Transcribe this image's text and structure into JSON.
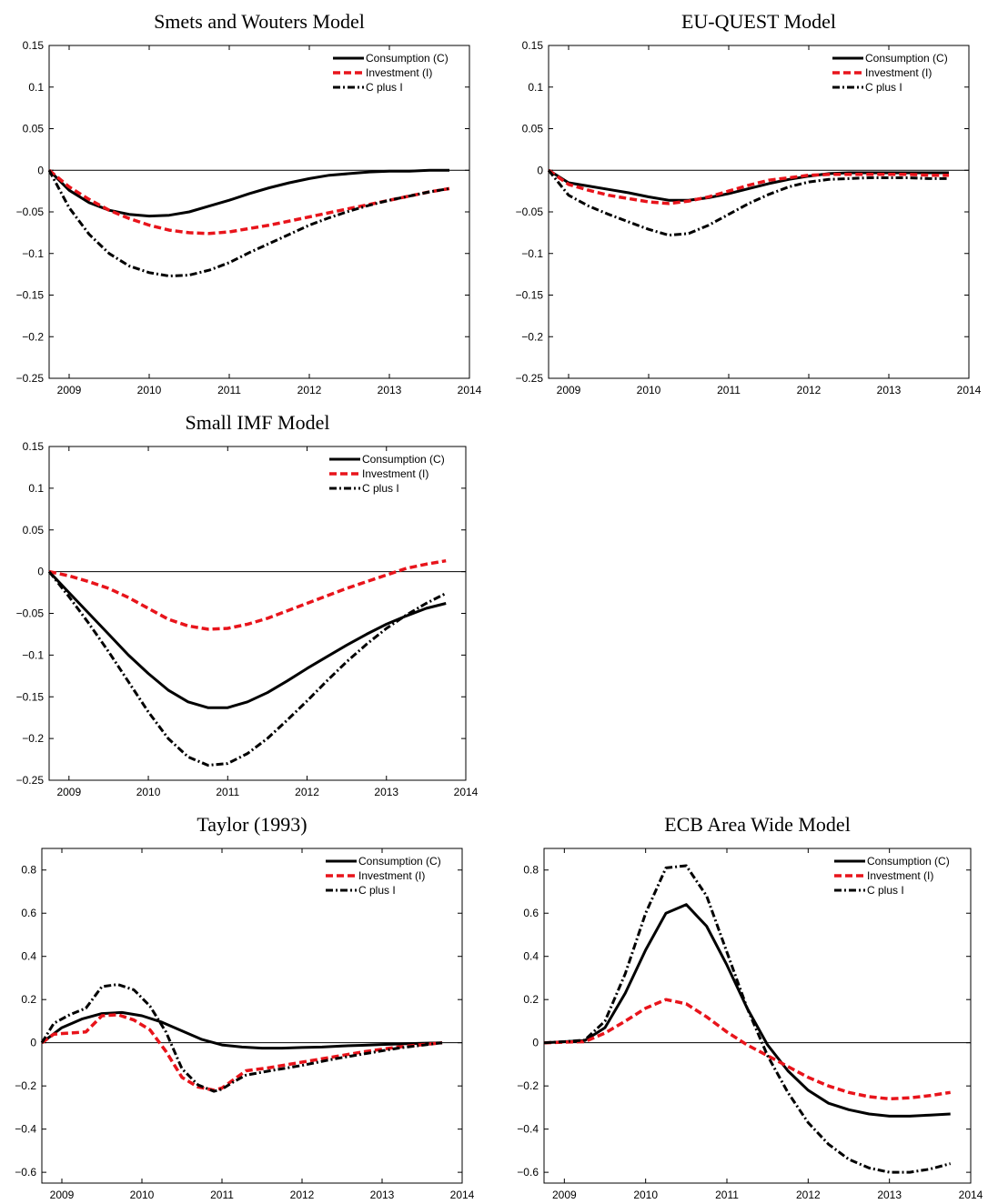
{
  "chart_data": [
    {
      "type": "line",
      "title": "Smets and Wouters Model",
      "xlim": [
        2008.75,
        2014.0
      ],
      "ylim": [
        -0.25,
        0.15
      ],
      "xticks": [
        2009,
        2010,
        2011,
        2012,
        2013,
        2014
      ],
      "yticks": [
        -0.25,
        -0.2,
        -0.15,
        -0.1,
        -0.05,
        0,
        0.05,
        0.1,
        0.15
      ],
      "ytick_labels": [
        "−0.25",
        "−0.2",
        "−0.15",
        "−0.1",
        "−0.05",
        "0",
        "0.05",
        "0.1",
        "0.15"
      ],
      "legend_position": "top-right",
      "series": [
        {
          "name": "Consumption (C)",
          "color": "#000000",
          "style": "solid",
          "x": [
            2008.75,
            2009.0,
            2009.25,
            2009.5,
            2009.75,
            2010.0,
            2010.25,
            2010.5,
            2010.75,
            2011.0,
            2011.25,
            2011.5,
            2011.75,
            2012.0,
            2012.25,
            2012.5,
            2012.75,
            2013.0,
            2013.25,
            2013.5,
            2013.75
          ],
          "y": [
            0,
            -0.024,
            -0.039,
            -0.048,
            -0.053,
            -0.055,
            -0.054,
            -0.05,
            -0.043,
            -0.036,
            -0.028,
            -0.021,
            -0.015,
            -0.01,
            -0.006,
            -0.004,
            -0.002,
            -0.001,
            -0.001,
            0,
            0
          ]
        },
        {
          "name": "Investment (I)",
          "color": "#e8141b",
          "style": "dashed",
          "x": [
            2008.75,
            2009.0,
            2009.25,
            2009.5,
            2009.75,
            2010.0,
            2010.25,
            2010.5,
            2010.75,
            2011.0,
            2011.25,
            2011.5,
            2011.75,
            2012.0,
            2012.25,
            2012.5,
            2012.75,
            2013.0,
            2013.25,
            2013.5,
            2013.75
          ],
          "y": [
            0,
            -0.02,
            -0.035,
            -0.048,
            -0.058,
            -0.066,
            -0.072,
            -0.075,
            -0.076,
            -0.074,
            -0.07,
            -0.066,
            -0.061,
            -0.056,
            -0.051,
            -0.046,
            -0.041,
            -0.036,
            -0.031,
            -0.026,
            -0.022
          ]
        },
        {
          "name": "C plus I",
          "color": "#000000",
          "style": "dashdot",
          "x": [
            2008.75,
            2009.0,
            2009.25,
            2009.5,
            2009.75,
            2010.0,
            2010.25,
            2010.5,
            2010.75,
            2011.0,
            2011.25,
            2011.5,
            2011.75,
            2012.0,
            2012.25,
            2012.5,
            2012.75,
            2013.0,
            2013.25,
            2013.5,
            2013.75
          ],
          "y": [
            0,
            -0.045,
            -0.077,
            -0.1,
            -0.115,
            -0.123,
            -0.127,
            -0.126,
            -0.12,
            -0.111,
            -0.099,
            -0.088,
            -0.077,
            -0.066,
            -0.057,
            -0.049,
            -0.042,
            -0.036,
            -0.031,
            -0.026,
            -0.022
          ]
        }
      ]
    },
    {
      "type": "line",
      "title": "EU-QUEST Model",
      "xlim": [
        2008.75,
        2014.0
      ],
      "ylim": [
        -0.25,
        0.15
      ],
      "xticks": [
        2009,
        2010,
        2011,
        2012,
        2013,
        2014
      ],
      "yticks": [
        -0.25,
        -0.2,
        -0.15,
        -0.1,
        -0.05,
        0,
        0.05,
        0.1,
        0.15
      ],
      "ytick_labels": [
        "−0.25",
        "−0.2",
        "−0.15",
        "−0.1",
        "−0.05",
        "0",
        "0.05",
        "0.1",
        "0.15"
      ],
      "legend_position": "top-right",
      "series": [
        {
          "name": "Consumption (C)",
          "color": "#000000",
          "style": "solid",
          "x": [
            2008.75,
            2009.0,
            2009.25,
            2009.5,
            2009.75,
            2010.0,
            2010.25,
            2010.5,
            2010.75,
            2011.0,
            2011.25,
            2011.5,
            2011.75,
            2012.0,
            2012.25,
            2012.5,
            2012.75,
            2013.0,
            2013.25,
            2013.5,
            2013.75
          ],
          "y": [
            0,
            -0.015,
            -0.019,
            -0.023,
            -0.027,
            -0.032,
            -0.036,
            -0.036,
            -0.033,
            -0.028,
            -0.022,
            -0.016,
            -0.011,
            -0.007,
            -0.004,
            -0.003,
            -0.003,
            -0.003,
            -0.003,
            -0.003,
            -0.003
          ]
        },
        {
          "name": "Investment (I)",
          "color": "#e8141b",
          "style": "dashed",
          "x": [
            2008.75,
            2009.0,
            2009.25,
            2009.5,
            2009.75,
            2010.0,
            2010.25,
            2010.5,
            2010.75,
            2011.0,
            2011.25,
            2011.5,
            2011.75,
            2012.0,
            2012.25,
            2012.5,
            2012.75,
            2013.0,
            2013.25,
            2013.5,
            2013.75
          ],
          "y": [
            0,
            -0.017,
            -0.024,
            -0.03,
            -0.034,
            -0.038,
            -0.04,
            -0.037,
            -0.032,
            -0.025,
            -0.018,
            -0.012,
            -0.009,
            -0.006,
            -0.005,
            -0.005,
            -0.005,
            -0.005,
            -0.005,
            -0.006,
            -0.006
          ]
        },
        {
          "name": "C plus I",
          "color": "#000000",
          "style": "dashdot",
          "x": [
            2008.75,
            2009.0,
            2009.25,
            2009.5,
            2009.75,
            2010.0,
            2010.25,
            2010.5,
            2010.75,
            2011.0,
            2011.25,
            2011.5,
            2011.75,
            2012.0,
            2012.25,
            2012.5,
            2012.75,
            2013.0,
            2013.25,
            2013.5,
            2013.75
          ],
          "y": [
            0,
            -0.03,
            -0.043,
            -0.053,
            -0.062,
            -0.071,
            -0.078,
            -0.076,
            -0.066,
            -0.053,
            -0.04,
            -0.029,
            -0.02,
            -0.014,
            -0.011,
            -0.01,
            -0.009,
            -0.009,
            -0.009,
            -0.01,
            -0.01
          ]
        }
      ]
    },
    {
      "type": "line",
      "title": "Small IMF Model",
      "xlim": [
        2008.75,
        2014.0
      ],
      "ylim": [
        -0.25,
        0.15
      ],
      "xticks": [
        2009,
        2010,
        2011,
        2012,
        2013,
        2014
      ],
      "yticks": [
        -0.25,
        -0.2,
        -0.15,
        -0.1,
        -0.05,
        0,
        0.05,
        0.1,
        0.15
      ],
      "ytick_labels": [
        "−0.25",
        "−0.2",
        "−0.15",
        "−0.1",
        "−0.05",
        "0",
        "0.05",
        "0.1",
        "0.15"
      ],
      "legend_position": "top-right",
      "series": [
        {
          "name": "Consumption (C)",
          "color": "#000000",
          "style": "solid",
          "x": [
            2008.75,
            2009.0,
            2009.25,
            2009.5,
            2009.75,
            2010.0,
            2010.25,
            2010.5,
            2010.75,
            2011.0,
            2011.25,
            2011.5,
            2011.75,
            2012.0,
            2012.25,
            2012.5,
            2012.75,
            2013.0,
            2013.25,
            2013.5,
            2013.75
          ],
          "y": [
            0,
            -0.025,
            -0.05,
            -0.075,
            -0.1,
            -0.122,
            -0.142,
            -0.156,
            -0.163,
            -0.163,
            -0.156,
            -0.145,
            -0.131,
            -0.116,
            -0.102,
            -0.088,
            -0.075,
            -0.063,
            -0.053,
            -0.044,
            -0.038
          ]
        },
        {
          "name": "Investment (I)",
          "color": "#e8141b",
          "style": "dashed",
          "x": [
            2008.75,
            2009.0,
            2009.25,
            2009.5,
            2009.75,
            2010.0,
            2010.25,
            2010.5,
            2010.75,
            2011.0,
            2011.25,
            2011.5,
            2011.75,
            2012.0,
            2012.25,
            2012.5,
            2012.75,
            2013.0,
            2013.25,
            2013.5,
            2013.75
          ],
          "y": [
            0,
            -0.005,
            -0.012,
            -0.02,
            -0.031,
            -0.044,
            -0.057,
            -0.065,
            -0.069,
            -0.068,
            -0.063,
            -0.056,
            -0.047,
            -0.038,
            -0.029,
            -0.02,
            -0.012,
            -0.004,
            0.004,
            0.009,
            0.013
          ]
        },
        {
          "name": "C plus I",
          "color": "#000000",
          "style": "dashdot",
          "x": [
            2008.75,
            2009.0,
            2009.25,
            2009.5,
            2009.75,
            2010.0,
            2010.25,
            2010.5,
            2010.75,
            2011.0,
            2011.25,
            2011.5,
            2011.75,
            2012.0,
            2012.25,
            2012.5,
            2012.75,
            2013.0,
            2013.25,
            2013.5,
            2013.75
          ],
          "y": [
            0,
            -0.03,
            -0.062,
            -0.096,
            -0.132,
            -0.168,
            -0.2,
            -0.222,
            -0.232,
            -0.23,
            -0.218,
            -0.2,
            -0.178,
            -0.155,
            -0.131,
            -0.108,
            -0.087,
            -0.068,
            -0.052,
            -0.038,
            -0.026
          ]
        }
      ]
    },
    {
      "type": "line",
      "title": "Taylor (1993)",
      "xlim": [
        2008.75,
        2014.0
      ],
      "ylim": [
        -0.65,
        0.9
      ],
      "xticks": [
        2009,
        2010,
        2011,
        2012,
        2013,
        2014
      ],
      "yticks": [
        -0.6,
        -0.4,
        -0.2,
        0,
        0.2,
        0.4,
        0.6,
        0.8
      ],
      "ytick_labels": [
        "−0.6",
        "−0.4",
        "−0.2",
        "0",
        "0.2",
        "0.4",
        "0.6",
        "0.8"
      ],
      "legend_position": "top-right",
      "series": [
        {
          "name": "Consumption (C)",
          "color": "#000000",
          "style": "solid",
          "x": [
            2008.75,
            2009.0,
            2009.25,
            2009.5,
            2009.75,
            2010.0,
            2010.25,
            2010.5,
            2010.75,
            2011.0,
            2011.25,
            2011.5,
            2011.75,
            2012.0,
            2012.25,
            2012.5,
            2012.75,
            2013.0,
            2013.25,
            2013.5,
            2013.75
          ],
          "y": [
            0,
            0.07,
            0.11,
            0.135,
            0.14,
            0.125,
            0.095,
            0.055,
            0.015,
            -0.01,
            -0.02,
            -0.025,
            -0.025,
            -0.022,
            -0.02,
            -0.015,
            -0.012,
            -0.008,
            -0.005,
            -0.002,
            0
          ]
        },
        {
          "name": "Investment (I)",
          "color": "#e8141b",
          "style": "dashed",
          "x": [
            2008.75,
            2008.9,
            2009.1,
            2009.3,
            2009.5,
            2009.7,
            2009.9,
            2010.1,
            2010.3,
            2010.5,
            2010.7,
            2010.9,
            2011.0,
            2011.15,
            2011.3,
            2011.6,
            2012.0,
            2012.4,
            2012.8,
            2013.2,
            2013.75
          ],
          "y": [
            0,
            0.04,
            0.045,
            0.05,
            0.125,
            0.13,
            0.105,
            0.06,
            -0.04,
            -0.16,
            -0.205,
            -0.22,
            -0.21,
            -0.17,
            -0.13,
            -0.115,
            -0.09,
            -0.065,
            -0.04,
            -0.02,
            0
          ]
        },
        {
          "name": "C plus I",
          "color": "#000000",
          "style": "dashdot",
          "x": [
            2008.75,
            2008.9,
            2009.1,
            2009.3,
            2009.5,
            2009.7,
            2009.9,
            2010.1,
            2010.3,
            2010.5,
            2010.7,
            2010.9,
            2011.0,
            2011.15,
            2011.3,
            2011.6,
            2012.0,
            2012.4,
            2012.8,
            2013.2,
            2013.75
          ],
          "y": [
            0,
            0.09,
            0.13,
            0.16,
            0.26,
            0.27,
            0.245,
            0.17,
            0.05,
            -0.12,
            -0.195,
            -0.225,
            -0.215,
            -0.18,
            -0.15,
            -0.13,
            -0.105,
            -0.075,
            -0.05,
            -0.025,
            0
          ]
        }
      ]
    },
    {
      "type": "line",
      "title": "ECB Area Wide Model",
      "xlim": [
        2008.75,
        2014.0
      ],
      "ylim": [
        -0.65,
        0.9
      ],
      "xticks": [
        2009,
        2010,
        2011,
        2012,
        2013,
        2014
      ],
      "yticks": [
        -0.6,
        -0.4,
        -0.2,
        0,
        0.2,
        0.4,
        0.6,
        0.8
      ],
      "ytick_labels": [
        "−0.6",
        "−0.4",
        "−0.2",
        "0",
        "0.2",
        "0.4",
        "0.6",
        "0.8"
      ],
      "legend_position": "top-right",
      "series": [
        {
          "name": "Consumption (C)",
          "color": "#000000",
          "style": "solid",
          "x": [
            2008.75,
            2009.0,
            2009.25,
            2009.5,
            2009.75,
            2010.0,
            2010.25,
            2010.5,
            2010.75,
            2011.0,
            2011.25,
            2011.5,
            2011.75,
            2012.0,
            2012.25,
            2012.5,
            2012.75,
            2013.0,
            2013.25,
            2013.5,
            2013.75
          ],
          "y": [
            0,
            0.005,
            0.01,
            0.07,
            0.23,
            0.43,
            0.6,
            0.64,
            0.54,
            0.36,
            0.16,
            -0.01,
            -0.13,
            -0.22,
            -0.28,
            -0.31,
            -0.33,
            -0.34,
            -0.34,
            -0.335,
            -0.33
          ]
        },
        {
          "name": "Investment (I)",
          "color": "#e8141b",
          "style": "dashed",
          "x": [
            2008.75,
            2009.0,
            2009.25,
            2009.5,
            2009.75,
            2010.0,
            2010.25,
            2010.5,
            2010.75,
            2011.0,
            2011.25,
            2011.5,
            2011.75,
            2012.0,
            2012.25,
            2012.5,
            2012.75,
            2013.0,
            2013.25,
            2013.5,
            2013.75
          ],
          "y": [
            0,
            0.003,
            0.005,
            0.045,
            0.1,
            0.16,
            0.2,
            0.18,
            0.12,
            0.05,
            -0.01,
            -0.06,
            -0.11,
            -0.16,
            -0.2,
            -0.23,
            -0.25,
            -0.26,
            -0.255,
            -0.245,
            -0.23
          ]
        },
        {
          "name": "C plus I",
          "color": "#000000",
          "style": "dashdot",
          "x": [
            2008.75,
            2009.0,
            2009.25,
            2009.5,
            2009.75,
            2010.0,
            2010.25,
            2010.5,
            2010.75,
            2011.0,
            2011.25,
            2011.5,
            2011.75,
            2012.0,
            2012.25,
            2012.5,
            2012.75,
            2013.0,
            2013.25,
            2013.5,
            2013.75
          ],
          "y": [
            0,
            0.005,
            0.012,
            0.1,
            0.32,
            0.6,
            0.81,
            0.82,
            0.68,
            0.42,
            0.16,
            -0.06,
            -0.23,
            -0.37,
            -0.47,
            -0.54,
            -0.58,
            -0.6,
            -0.6,
            -0.585,
            -0.56
          ]
        }
      ]
    }
  ]
}
